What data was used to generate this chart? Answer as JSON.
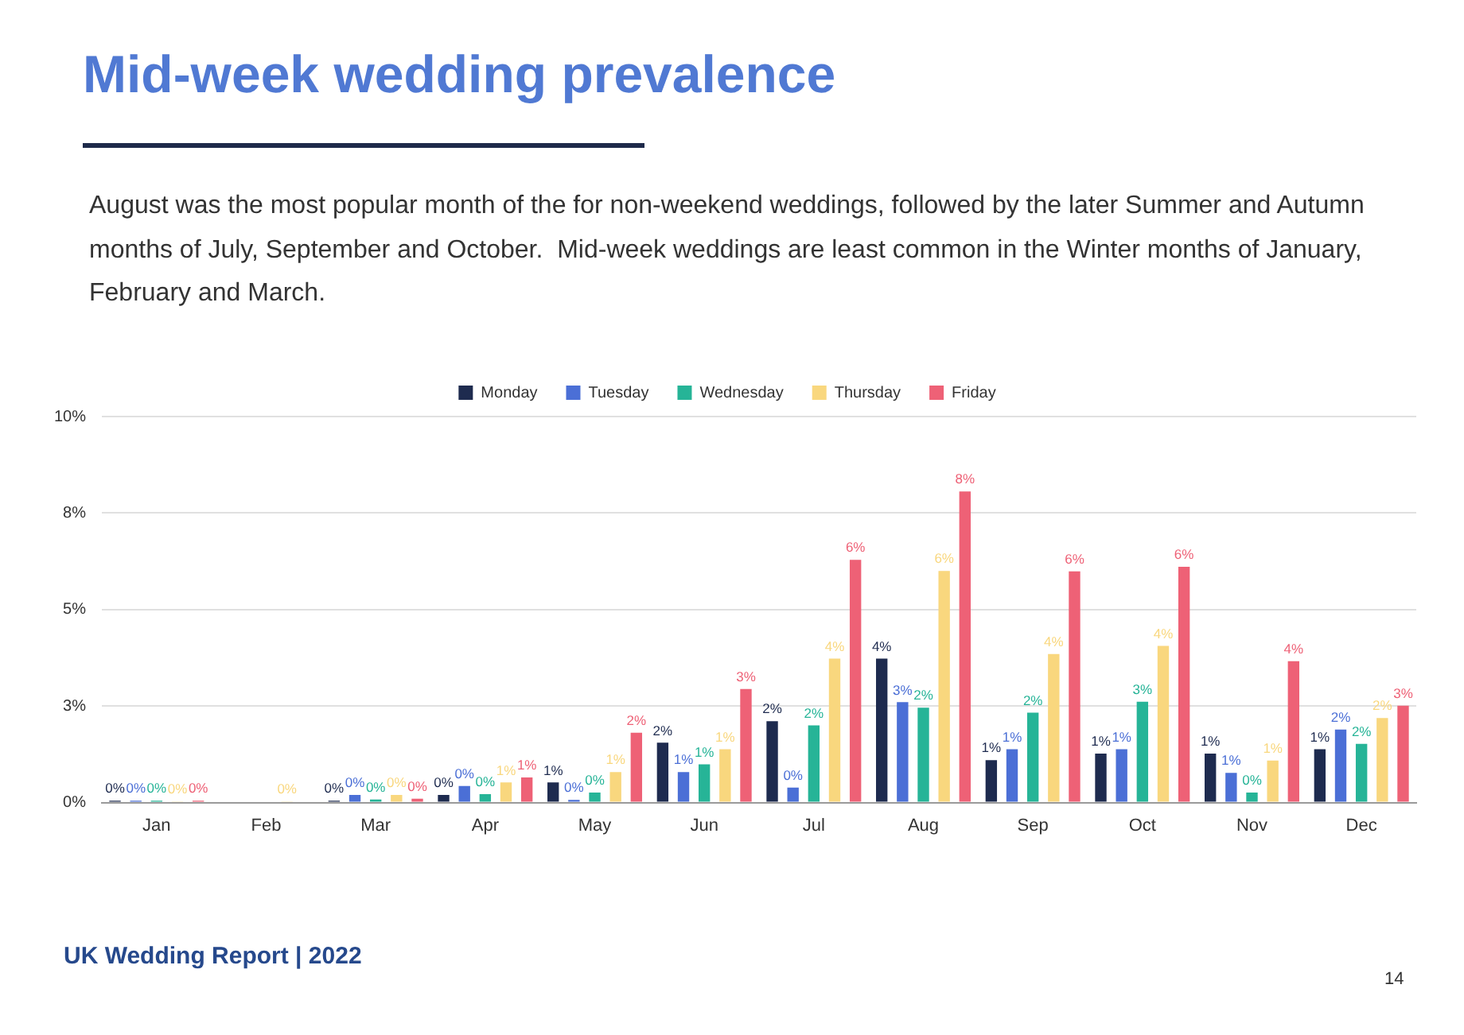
{
  "chart_data": {
    "type": "bar",
    "title": "Mid-week wedding prevalence",
    "subtitle": "August was the most popular month of the for non-weekend weddings, followed by the later Summer and Autumn months of July, September and October.  Mid-week weddings are least common in the Winter months of January, February and March.",
    "categories": [
      "Jan",
      "Feb",
      "Mar",
      "Apr",
      "May",
      "Jun",
      "Jul",
      "Aug",
      "Sep",
      "Oct",
      "Nov",
      "Dec"
    ],
    "series": [
      {
        "name": "Monday",
        "color": "#1e2b4f",
        "values": [
          0.05,
          null,
          0.05,
          0.2,
          0.52,
          1.55,
          2.11,
          3.73,
          1.1,
          1.27,
          1.27,
          1.38
        ],
        "value_labels": [
          "0%",
          null,
          "0%",
          "0%",
          "1%",
          "2%",
          "2%",
          "4%",
          "1%",
          "1%",
          "1%",
          "1%"
        ]
      },
      {
        "name": "Tuesday",
        "color": "#4b6fd6",
        "values": [
          0.05,
          null,
          0.2,
          0.43,
          0.07,
          0.79,
          0.39,
          2.6,
          1.38,
          1.38,
          0.77,
          1.89
        ],
        "value_labels": [
          "0%",
          null,
          "0%",
          "0%",
          "0%",
          "1%",
          "0%",
          "3%",
          "1%",
          "1%",
          "1%",
          "2%"
        ]
      },
      {
        "name": "Wednesday",
        "color": "#26b497",
        "values": [
          0.05,
          null,
          0.08,
          0.22,
          0.26,
          0.99,
          2.0,
          2.46,
          2.33,
          2.61,
          0.26,
          1.52
        ],
        "value_labels": [
          "0%",
          null,
          "0%",
          "0%",
          "0%",
          "1%",
          "2%",
          "2%",
          "2%",
          "3%",
          "0%",
          "2%"
        ]
      },
      {
        "name": "Thursday",
        "color": "#f9d77e",
        "values": [
          0.03,
          0.03,
          0.2,
          0.52,
          0.79,
          1.38,
          3.73,
          6.0,
          3.85,
          4.06,
          1.09,
          2.19
        ],
        "value_labels": [
          "0%",
          "0%",
          "0%",
          "1%",
          "1%",
          "1%",
          "4%",
          "6%",
          "4%",
          "4%",
          "1%",
          "2%"
        ]
      },
      {
        "name": "Friday",
        "color": "#ee6176",
        "values": [
          0.05,
          null,
          0.1,
          0.65,
          1.81,
          2.94,
          6.29,
          8.06,
          5.99,
          6.11,
          3.66,
          2.51
        ],
        "value_labels": [
          "0%",
          null,
          "0%",
          "1%",
          "2%",
          "3%",
          "6%",
          "8%",
          "6%",
          "6%",
          "4%",
          "3%"
        ]
      }
    ],
    "ylim": [
      0,
      10
    ],
    "yticks": [
      {
        "value": 0,
        "label": "0%"
      },
      {
        "value": 2.5,
        "label": "3%"
      },
      {
        "value": 5,
        "label": "5%"
      },
      {
        "value": 7.5,
        "label": "8%"
      },
      {
        "value": 10,
        "label": "10%"
      }
    ],
    "grid": "y",
    "legend": "top",
    "annotations": [
      "UK Wedding Report | 2022",
      "14"
    ]
  }
}
